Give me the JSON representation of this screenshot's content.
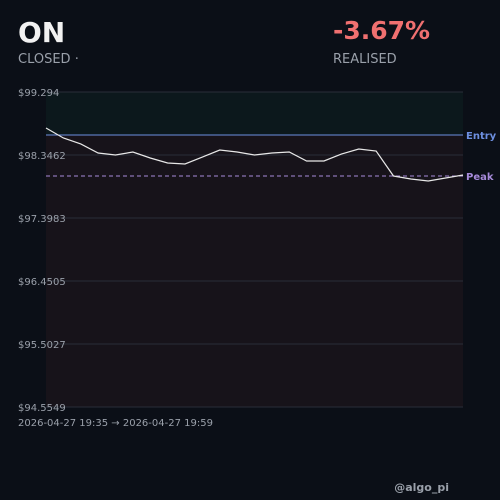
{
  "header": {
    "symbol": "ON",
    "status": "CLOSED ·",
    "pnl": "-3.67%",
    "pnl_label": "REALISED"
  },
  "footer": {
    "handle": "@algo_pi"
  },
  "chart_data": {
    "type": "line",
    "x_label": "2026-04-27 19:35 → 2026-04-27 19:59",
    "series": [
      {
        "color": "#e8e8e8",
        "values": [
          98.752,
          98.602,
          98.512,
          98.376,
          98.346,
          98.391,
          98.301,
          98.226,
          98.211,
          98.316,
          98.421,
          98.391,
          98.346,
          98.376,
          98.391,
          98.256,
          98.256,
          98.361,
          98.436,
          98.406,
          98.03,
          97.985,
          97.955,
          98.0,
          98.045
        ]
      }
    ],
    "ylim": [
      94.5549,
      99.294
    ],
    "yticks": [
      {
        "value": 94.5549,
        "label": "$94.5549"
      },
      {
        "value": 95.5027,
        "label": "$95.5027"
      },
      {
        "value": 96.4505,
        "label": "$96.4505"
      },
      {
        "value": 97.3983,
        "label": "$97.3983"
      },
      {
        "value": 98.3462,
        "label": "$98.3462"
      },
      {
        "value": 99.294,
        "label": "$99.294"
      }
    ],
    "grid": true,
    "reference_lines": [
      {
        "name": "Entry",
        "value": 98.647,
        "color": "#6d8fe0",
        "style": "solid"
      },
      {
        "name": "Peak",
        "value": 98.03,
        "color": "#a78bdb",
        "style": "dashed"
      }
    ]
  }
}
